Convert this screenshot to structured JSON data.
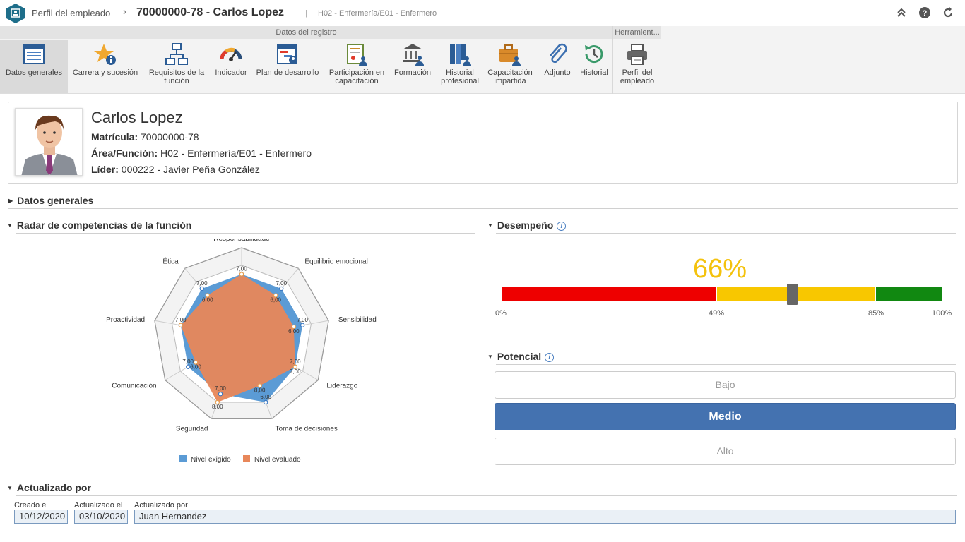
{
  "title": {
    "module": "Perfil del empleado",
    "employee": "70000000-78 - Carlos Lopez",
    "separator": "|",
    "subtitle": "H02 - Enfermería/E01 - Enfermero"
  },
  "ribbon": {
    "groups": [
      "Datos del registro",
      "Herramient..."
    ],
    "buttons": [
      {
        "label": "Datos generales",
        "icon": "datasheet-icon"
      },
      {
        "label": "Carrera y sucesión",
        "icon": "star-info-icon"
      },
      {
        "label": "Requisitos de la función",
        "icon": "org-chart-icon"
      },
      {
        "label": "Indicador",
        "icon": "gauge-icon"
      },
      {
        "label": "Plan de desarrollo",
        "icon": "gantt-plan-icon"
      },
      {
        "label": "Participación en capacitación",
        "icon": "certificate-user-icon"
      },
      {
        "label": "Formación",
        "icon": "institution-user-icon"
      },
      {
        "label": "Historial profesional",
        "icon": "binders-user-icon"
      },
      {
        "label": "Capacitación impartida",
        "icon": "briefcase-user-icon"
      },
      {
        "label": "Adjunto",
        "icon": "paperclip-icon"
      },
      {
        "label": "Historial",
        "icon": "history-clock-icon"
      },
      {
        "label": "Perfil del empleado",
        "icon": "printer-icon"
      }
    ]
  },
  "employee": {
    "name": "Carlos Lopez",
    "matricula_label": "Matrícula:",
    "matricula": "70000000-78",
    "area_label": "Área/Función:",
    "area": "H02 - Enfermería/E01 - Enfermero",
    "lider_label": "Líder:",
    "lider": "000222 - Javier Peña González"
  },
  "sections": {
    "datos_generales": "Datos generales",
    "radar": "Radar de competencias de la función",
    "desempeno": "Desempeño",
    "potencial": "Potencial",
    "actualizado": "Actualizado por"
  },
  "chart_data": {
    "type": "radar",
    "categories": [
      "Responsabilidade",
      "Equilibrio emocional",
      "Sensibilidad",
      "Liderazgo",
      "Toma de decisiones",
      "Seguridad",
      "Comunicación",
      "Proactividad",
      "Ética"
    ],
    "rmax": 10,
    "series": [
      {
        "name": "Nivel exigido",
        "color": "#5b9bd5",
        "values": [
          7,
          7,
          7,
          7,
          8,
          7,
          7,
          7,
          7
        ]
      },
      {
        "name": "Nivel evaluado",
        "color": "#e8875a",
        "values": [
          7,
          6,
          6,
          7,
          6,
          8,
          6,
          7,
          6
        ]
      }
    ],
    "point_labels": [
      [
        [
          "7,00"
        ],
        [
          "7,00",
          "6,00"
        ],
        [
          "7,00",
          "6,00"
        ],
        [
          "7,00",
          "7,00"
        ],
        [
          "6,00",
          "8,00"
        ],
        [
          "7,00",
          "8,00"
        ],
        [
          "7,00",
          "6,00"
        ],
        [
          "7,00"
        ],
        [
          "7,00",
          "6,00"
        ]
      ]
    ]
  },
  "performance": {
    "value_text": "66%",
    "value": 66,
    "segments": [
      {
        "from": 0,
        "to": 49,
        "color": "#ee0000"
      },
      {
        "from": 49,
        "to": 85,
        "color": "#f8c700"
      },
      {
        "from": 85,
        "to": 100,
        "color": "#118811"
      }
    ],
    "ticks": [
      "0%",
      "49%",
      "85%",
      "100%"
    ]
  },
  "potential": {
    "options": [
      "Bajo",
      "Medio",
      "Alto"
    ],
    "selected": "Medio"
  },
  "updated": {
    "created_label": "Creado el",
    "created": "10/12/2020",
    "updated_label": "Actualizado el",
    "updated": "03/10/2020",
    "by_label": "Actualizado por",
    "by": "Juan Hernandez"
  }
}
